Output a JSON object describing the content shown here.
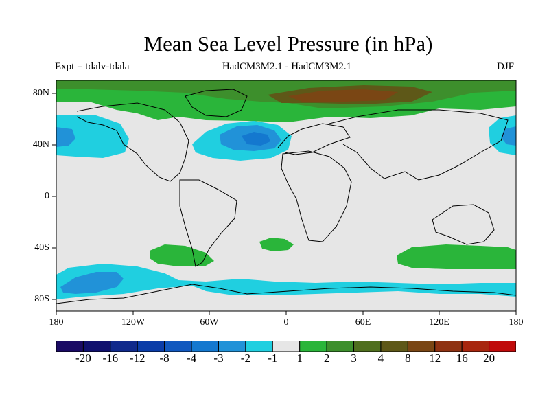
{
  "title": "Mean Sea Level Pressure (in hPa)",
  "experiment": "Expt = tdalv-tdala",
  "comparison": "HadCM3M2.1 - HadCM3M2.1",
  "season": "DJF",
  "axes": {
    "lat_labels": [
      "80N",
      "40N",
      "0",
      "40S",
      "80S"
    ],
    "lon_labels": [
      "180",
      "120W",
      "60W",
      "0",
      "60E",
      "120E",
      "180"
    ]
  },
  "colorbar": {
    "colors": [
      "#1a0a64",
      "#10106e",
      "#102a8c",
      "#0a3ca8",
      "#1158bf",
      "#1478cf",
      "#2192d8",
      "#20cfe0",
      "#e6e6e6",
      "#2ab53a",
      "#3d8f2c",
      "#4f6f1e",
      "#5e5818",
      "#7a4614",
      "#8f3212",
      "#a8260e",
      "#c00a0a"
    ],
    "labels": [
      "-20",
      "-16",
      "-12",
      "-8",
      "-4",
      "-3",
      "-2",
      "-1",
      "1",
      "2",
      "3",
      "4",
      "8",
      "12",
      "16",
      "20"
    ]
  },
  "legend_colors": {
    "neutral": "#e6e6e6",
    "neg_light": "#20cfe0",
    "neg_mid": "#2192d8",
    "neg_strong": "#1478cf",
    "pos_light": "#2ab53a",
    "pos_mid": "#3d8f2c",
    "pos_strong": "#7a4614"
  }
}
